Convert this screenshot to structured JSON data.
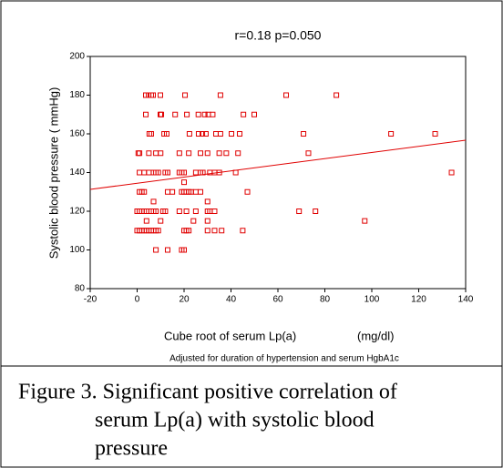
{
  "chart_data": {
    "type": "scatter",
    "title": "r=0.18  p=0.050",
    "y_label": "Systolic  blood pressure ( mmHg)",
    "x_label": "Cube root of serum Lp(a)",
    "x_unit": "(mg/dl)",
    "note": "Adjusted for duration of hypertension and serum HgbA1c",
    "xlim": [
      -20,
      140
    ],
    "xticks": [
      -20,
      0,
      20,
      40,
      60,
      80,
      100,
      120,
      140
    ],
    "ylim": [
      80,
      200
    ],
    "yticks": [
      80,
      100,
      120,
      140,
      160,
      180,
      200
    ],
    "grid": false,
    "series": [
      {
        "color": "#e00000",
        "x": [
          3.7,
          4.9,
          6,
          6.8,
          9.9,
          20.4,
          35.5,
          63.5,
          84.9,
          3.7,
          9.9,
          10.3,
          16.2,
          21.2,
          26.1,
          28.8,
          30.3,
          32.2,
          45.3,
          49.9,
          5.2,
          6,
          11.5,
          12.6,
          22.3,
          26.2,
          27.8,
          29.3,
          33.6,
          35.5,
          40.2,
          43.7,
          70.9,
          108.2,
          127,
          0.5,
          1,
          5,
          8,
          10,
          18,
          22,
          27,
          30,
          35,
          38,
          43,
          73,
          1,
          3,
          5,
          7,
          8,
          9,
          12,
          13,
          18,
          19,
          20,
          25,
          27,
          28,
          31,
          33,
          35,
          42,
          134,
          20,
          1,
          2,
          3,
          13,
          15,
          19,
          20,
          21,
          22,
          23,
          25,
          27,
          47,
          7,
          30,
          0,
          1,
          2,
          3,
          4,
          6,
          7,
          8,
          11,
          12,
          18,
          21,
          25,
          30,
          31,
          33,
          69,
          76,
          4,
          10,
          24,
          30,
          97,
          0,
          1,
          2,
          3,
          4,
          5,
          6,
          7,
          8,
          9,
          20,
          21,
          22,
          30,
          33,
          36,
          45,
          8,
          13,
          19,
          20
        ],
        "values": [
          180,
          180,
          180,
          180,
          180,
          180,
          180,
          180,
          180,
          170,
          170,
          170,
          170,
          170,
          170,
          170,
          170,
          170,
          170,
          170,
          160,
          160,
          160,
          160,
          160,
          160,
          160,
          160,
          160,
          160,
          160,
          160,
          160,
          160,
          160,
          150,
          150,
          150,
          150,
          150,
          150,
          150,
          150,
          150,
          150,
          150,
          150,
          150,
          140,
          140,
          140,
          140,
          140,
          140,
          140,
          140,
          140,
          140,
          140,
          140,
          140,
          140,
          140,
          140,
          140,
          140,
          140,
          135,
          130,
          130,
          130,
          130,
          130,
          130,
          130,
          130,
          130,
          130,
          130,
          130,
          130,
          125,
          125,
          120,
          120,
          120,
          120,
          120,
          120,
          120,
          120,
          120,
          120,
          120,
          120,
          120,
          120,
          120,
          120,
          120,
          120,
          115,
          115,
          115,
          115,
          115,
          110,
          110,
          110,
          110,
          110,
          110,
          110,
          110,
          110,
          110,
          110,
          110,
          110,
          110,
          110,
          110,
          110,
          100,
          100,
          100,
          100
        ]
      }
    ],
    "fit_line": {
      "color": "#e00000",
      "x": [
        -20,
        140
      ],
      "y": [
        131.3,
        156.7
      ]
    },
    "caption": [
      "Figure 3. Significant positive correlation of",
      "serum Lp(a) with systolic blood",
      "pressure"
    ]
  }
}
